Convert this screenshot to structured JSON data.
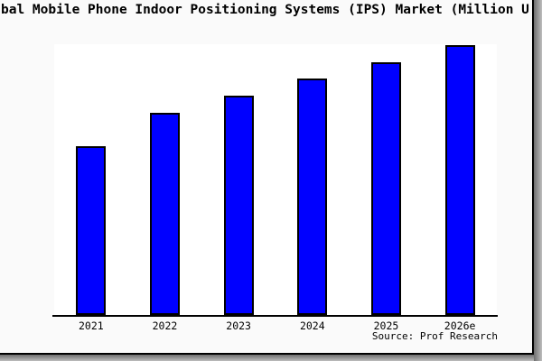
{
  "page": {
    "card_background": "#fafafa",
    "plot_background": "#ffffff",
    "frame_border_color": "#000000",
    "shadow_color": "#6e6e6e"
  },
  "title": {
    "visible_text": "bal Mobile Phone Indoor Positioning Systems (IPS) Market (Million U",
    "note": "title is cropped at the left and right edges of the screenshot"
  },
  "chart_data": {
    "type": "bar",
    "title": "bal Mobile Phone Indoor Positioning Systems (IPS) Market (Million U",
    "categories": [
      "2021",
      "2022",
      "2023",
      "2024",
      "2025",
      "2026e"
    ],
    "values": [
      187,
      224,
      243,
      262,
      280,
      299
    ],
    "values_unit": "relative bar height in pixels (chart displays no y-axis scale or value labels)",
    "xlabel": "",
    "ylabel": "",
    "grid": false,
    "legend": false,
    "axis_color": "#000000",
    "bar_color": "#0000ff",
    "bar_border_color": "#000000",
    "source": "Source: Prof Research"
  },
  "footer": {
    "source_label": "Source: Prof Research"
  }
}
